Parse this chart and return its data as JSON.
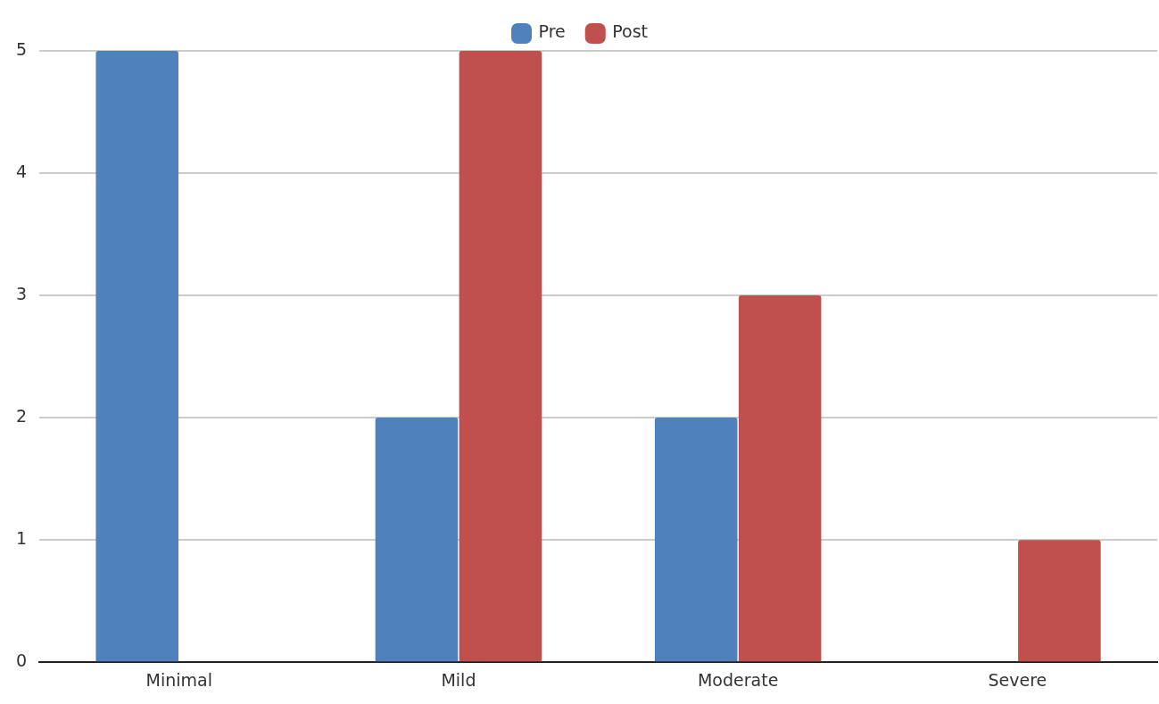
{
  "chart_data": {
    "type": "bar",
    "categories": [
      "Minimal",
      "Mild",
      "Moderate",
      "Severe"
    ],
    "series": [
      {
        "name": "Pre",
        "color": "#4f81bd",
        "values": [
          5,
          2,
          2,
          0
        ]
      },
      {
        "name": "Post",
        "color": "#c0504d",
        "values": [
          0,
          5,
          3,
          1
        ]
      }
    ],
    "ylim": [
      0,
      5
    ],
    "yticks": [
      0,
      1,
      2,
      3,
      4,
      5
    ],
    "grid": "y",
    "legend": "top"
  }
}
